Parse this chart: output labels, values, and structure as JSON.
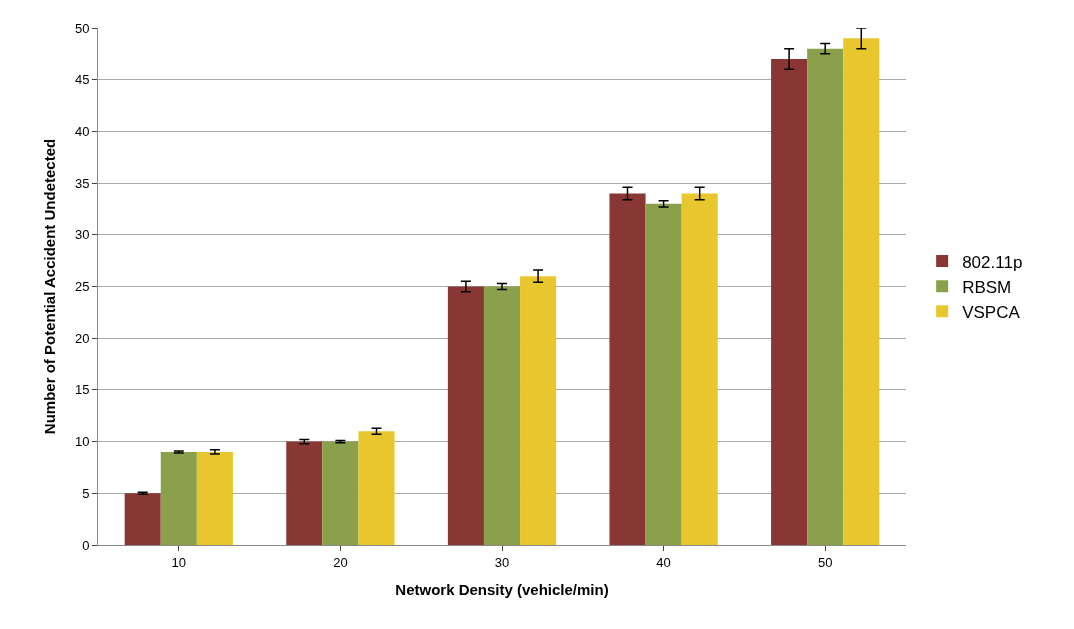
{
  "chart_data": {
    "type": "bar",
    "xlabel": "Network Density (vehicle/min)",
    "ylabel": "Number of Potential Accident Undetected",
    "categories": [
      "10",
      "20",
      "30",
      "40",
      "50"
    ],
    "series": [
      {
        "name": "802.11p",
        "color": "#893735",
        "values": [
          5,
          10,
          25,
          34,
          47
        ],
        "errors": [
          0.1,
          0.2,
          0.5,
          0.6,
          1
        ]
      },
      {
        "name": "RBSM",
        "color": "#8aa04b",
        "values": [
          9,
          10,
          25,
          33,
          48
        ],
        "errors": [
          0.1,
          0.1,
          0.3,
          0.3,
          0.5
        ]
      },
      {
        "name": "VSPCA",
        "color": "#e8c72e",
        "values": [
          9,
          11,
          26,
          34,
          49
        ],
        "errors": [
          0.2,
          0.3,
          0.6,
          0.6,
          1
        ]
      }
    ],
    "ylim": [
      0,
      50
    ],
    "yticks": [
      0,
      5,
      10,
      15,
      20,
      25,
      30,
      35,
      40,
      45,
      50
    ],
    "grid": "y",
    "legend": "right"
  }
}
